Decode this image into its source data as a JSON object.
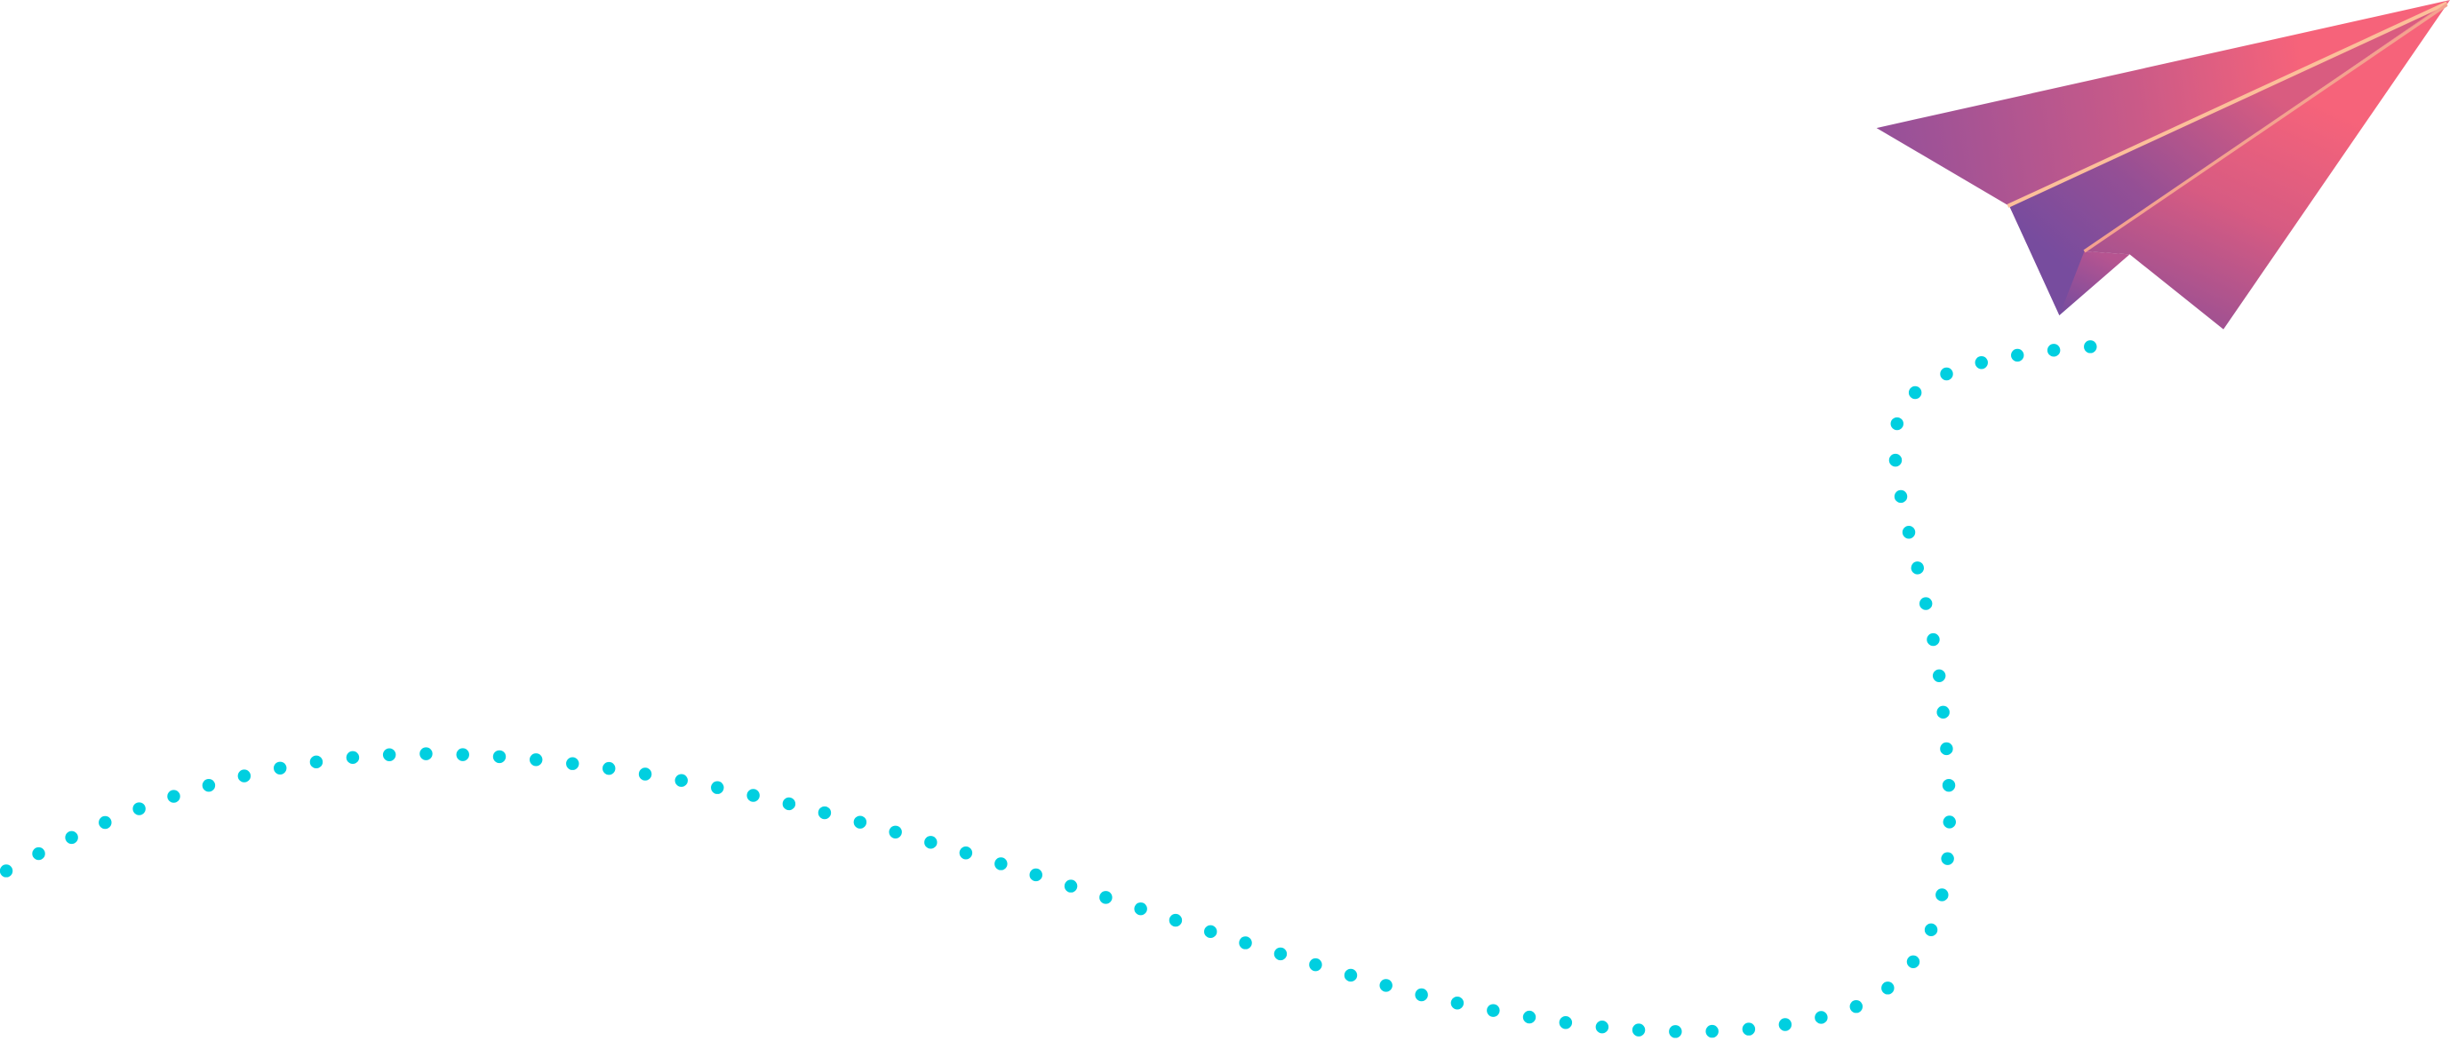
{
  "illustration": {
    "subject": "paper-plane-with-dotted-trail",
    "colors": {
      "background": "#ffffff",
      "trail_dots": "#00cfe0",
      "plane_pink": "#f6637a",
      "plane_magenta": "#c65a8a",
      "plane_purple": "#774c9e",
      "crease_highlight": "#fcbf9a"
    }
  }
}
